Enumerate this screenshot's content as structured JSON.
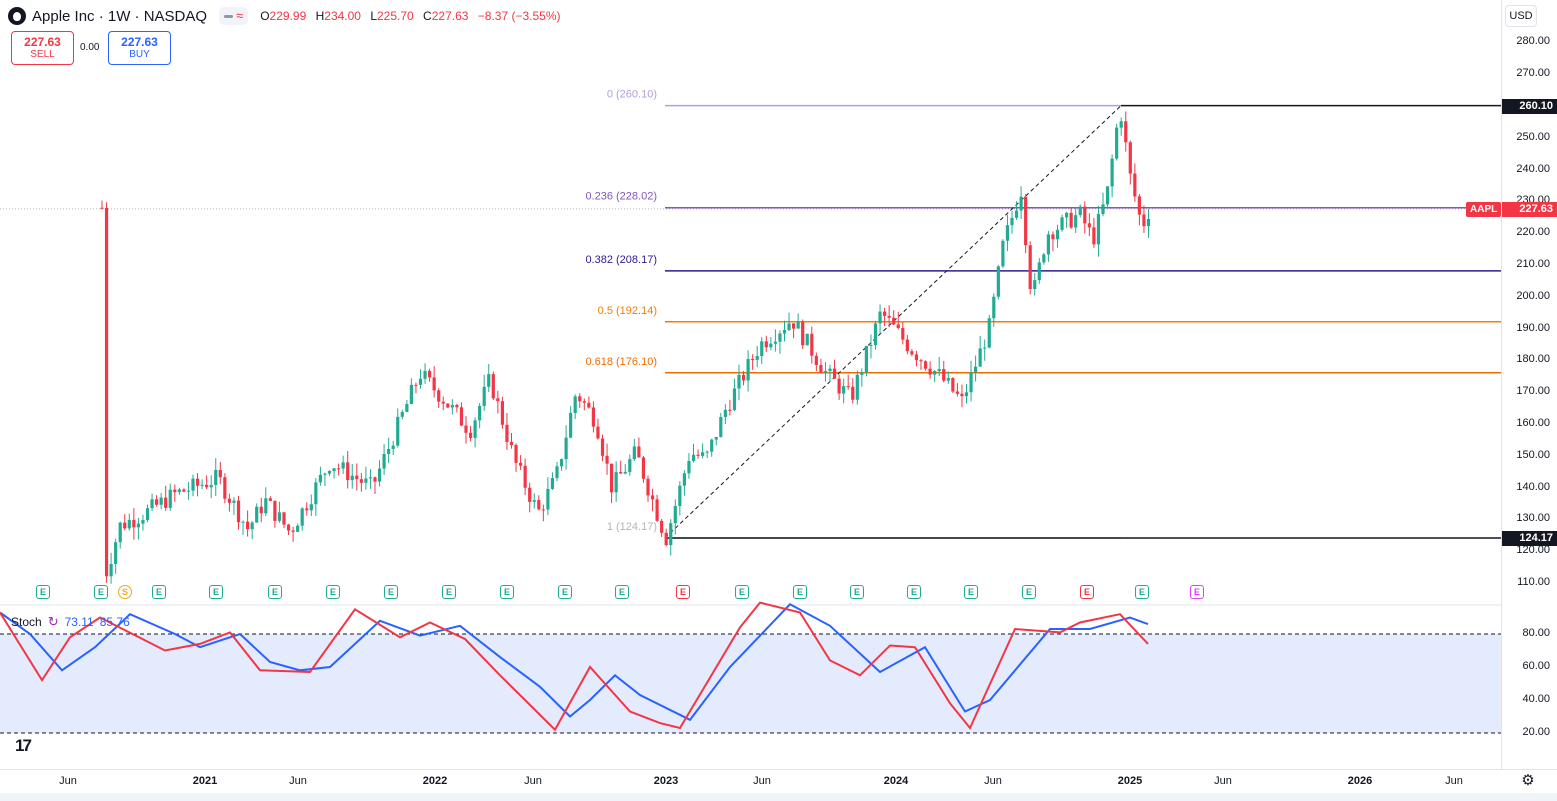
{
  "header": {
    "title": "Apple Inc · 1W · NASDAQ",
    "ohlc": [
      {
        "k": "O",
        "v": "229.99"
      },
      {
        "k": "H",
        "v": "234.00"
      },
      {
        "k": "L",
        "v": "225.70"
      },
      {
        "k": "C",
        "v": "227.63"
      },
      {
        "k": "",
        "v": "−8.37 (−3.55%)"
      }
    ],
    "change_text": "−8.37 (−3.55%)"
  },
  "trade": {
    "sell_price": "227.63",
    "sell_label": "SELL",
    "spread": "0.00",
    "buy_price": "227.63",
    "buy_label": "BUY"
  },
  "currency": "USD",
  "price_axis": {
    "labels": [
      "280.00",
      "270.00",
      "260.00",
      "250.00",
      "240.00",
      "230.00",
      "220.00",
      "210.00",
      "200.00",
      "190.00",
      "180.00",
      "170.00",
      "160.00",
      "150.00",
      "140.00",
      "130.00",
      "120.00",
      "110.00"
    ],
    "values": [
      280,
      270,
      260,
      250,
      240,
      230,
      220,
      210,
      200,
      190,
      180,
      170,
      160,
      150,
      140,
      130,
      120,
      110
    ],
    "high_tag": "260.10",
    "low_tag": "124.17",
    "current_tag": "227.63",
    "symbol_tag": "AAPL"
  },
  "fib_levels": [
    {
      "label": "0 (260.10)",
      "price": 260.1,
      "color": "#b39ddb"
    },
    {
      "label": "0.236 (228.02)",
      "price": 228.02,
      "color": "#7e57c2"
    },
    {
      "label": "0.382 (208.17)",
      "price": 208.17,
      "color": "#311b92"
    },
    {
      "label": "0.5 (192.14)",
      "price": 192.14,
      "color": "#f57c00"
    },
    {
      "label": "0.618 (176.10)",
      "price": 176.1,
      "color": "#ef6c00"
    },
    {
      "label": "1 (124.17)",
      "price": 124.17,
      "color": "#b2b5be"
    }
  ],
  "stoch": {
    "name": "Stoch",
    "k": "73.11",
    "d": "85.76",
    "labels": [
      "80.00",
      "60.00",
      "40.00",
      "20.00"
    ],
    "values": [
      80,
      60,
      40,
      20
    ]
  },
  "time_axis": [
    {
      "label": "Jun",
      "bold": false
    },
    {
      "label": "2021",
      "bold": true
    },
    {
      "label": "Jun",
      "bold": false
    },
    {
      "label": "2022",
      "bold": true
    },
    {
      "label": "Jun",
      "bold": false
    },
    {
      "label": "2023",
      "bold": true
    },
    {
      "label": "Jun",
      "bold": false
    },
    {
      "label": "2024",
      "bold": true
    },
    {
      "label": "Jun",
      "bold": false
    },
    {
      "label": "2025",
      "bold": true
    },
    {
      "label": "Jun",
      "bold": false
    },
    {
      "label": "2026",
      "bold": true
    },
    {
      "label": "Jun",
      "bold": false
    }
  ],
  "events": [
    "E",
    "E",
    "S",
    "E",
    "E",
    "E",
    "E",
    "E",
    "E",
    "E",
    "E",
    "E",
    "E",
    "E",
    "E",
    "E",
    "E",
    "E",
    "E",
    "E",
    "E"
  ],
  "colors": {
    "up": "#22ab94",
    "down": "#f23645",
    "stoch_k": "#2962ff",
    "stoch_d": "#f23645",
    "band": "#e3ebfd"
  }
}
